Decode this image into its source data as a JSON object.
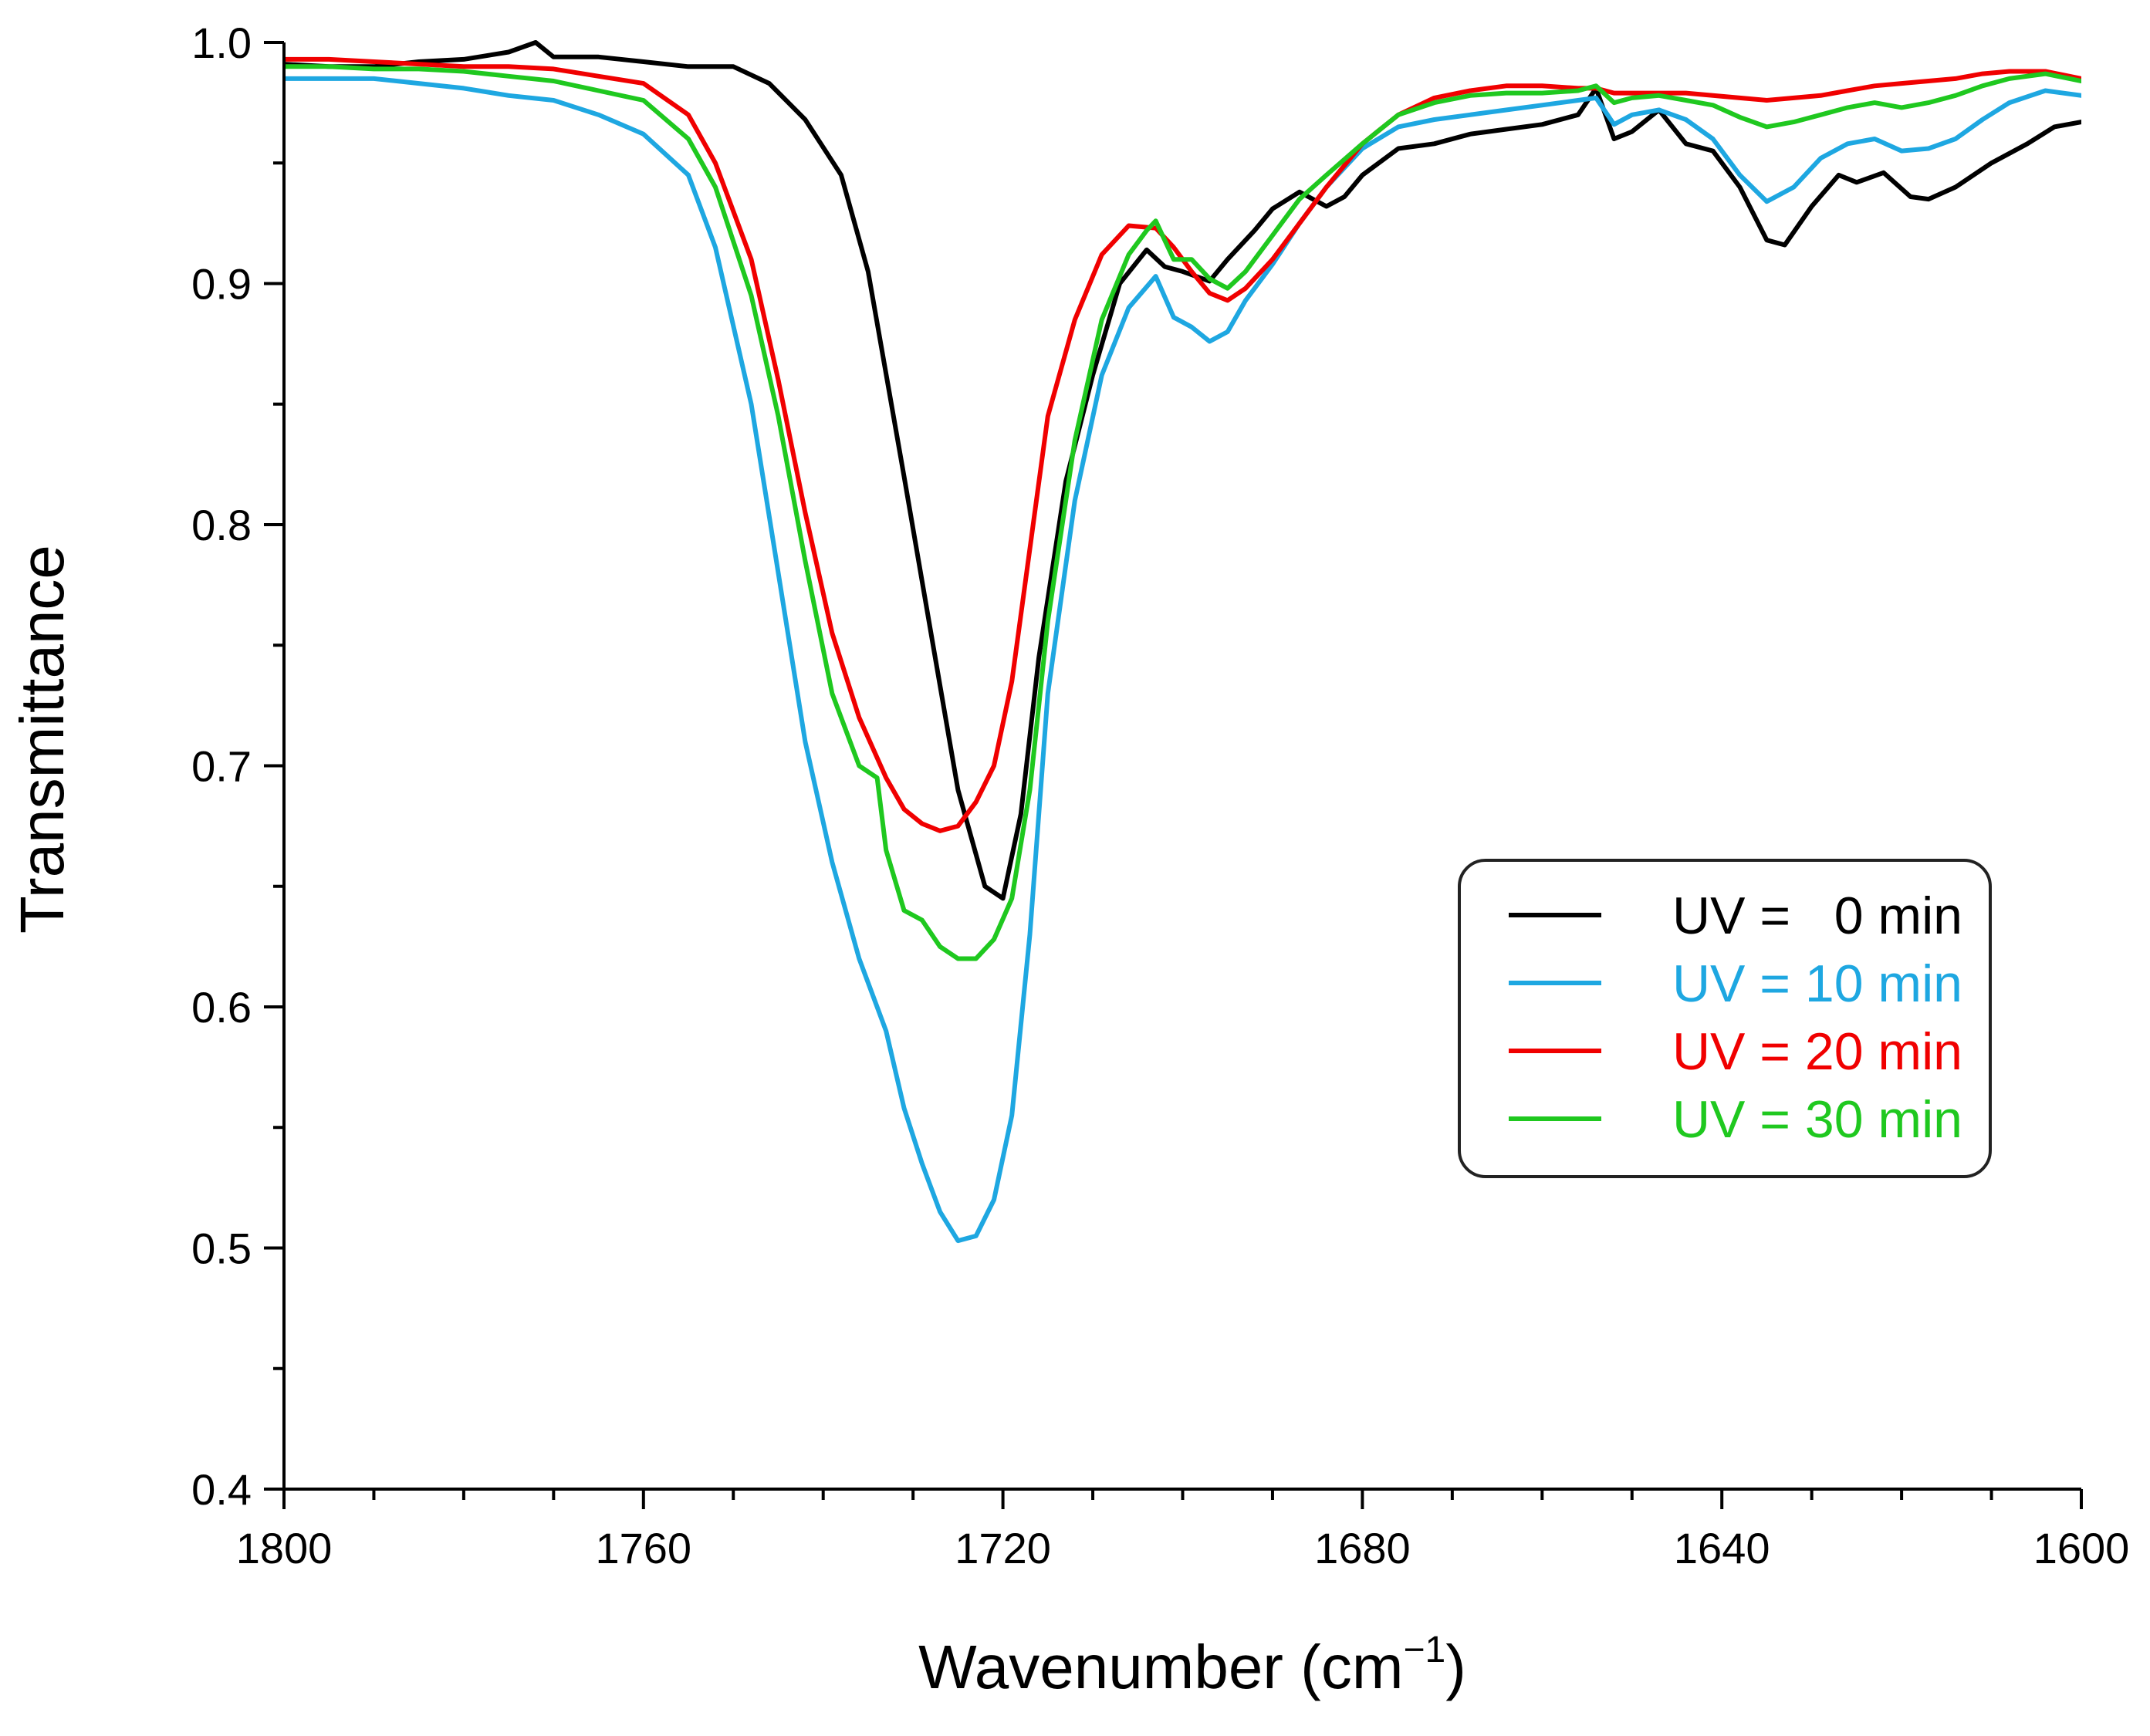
{
  "chart_data": {
    "type": "line",
    "xlabel": "Wavenumber (cm",
    "xlabel_sup": "−1",
    "xlabel_close": ")",
    "ylabel": "Transmittance",
    "xlim": [
      1800,
      1600
    ],
    "ylim": [
      0.4,
      1.0
    ],
    "x_ticks": [
      "1800",
      "1760",
      "1720",
      "1680",
      "1640",
      "1600"
    ],
    "y_ticks": [
      "0.4",
      "0.5",
      "0.6",
      "0.7",
      "0.8",
      "0.9",
      "1.0"
    ],
    "legend": {
      "placement": "right-center"
    },
    "series": [
      {
        "name": "UV =   0 min",
        "color": "#000000",
        "x": [
          1800,
          1795,
          1790,
          1785,
          1780,
          1775,
          1772,
          1770,
          1765,
          1760,
          1755,
          1750,
          1746,
          1742,
          1738,
          1735,
          1731,
          1728,
          1725,
          1722,
          1720,
          1718,
          1716,
          1713,
          1710,
          1707,
          1704,
          1702,
          1700,
          1697,
          1695,
          1692,
          1690,
          1687,
          1684,
          1682,
          1680,
          1676,
          1672,
          1668,
          1664,
          1660,
          1656,
          1654,
          1652,
          1650,
          1647,
          1644,
          1641,
          1638,
          1635,
          1633,
          1630,
          1627,
          1625,
          1622,
          1619,
          1617,
          1614,
          1610,
          1606,
          1603,
          1600
        ],
        "y": [
          0.991,
          0.99,
          0.99,
          0.992,
          0.993,
          0.996,
          1.0,
          0.994,
          0.994,
          0.992,
          0.99,
          0.99,
          0.983,
          0.968,
          0.945,
          0.905,
          0.82,
          0.755,
          0.69,
          0.65,
          0.645,
          0.68,
          0.745,
          0.818,
          0.862,
          0.9,
          0.914,
          0.907,
          0.905,
          0.901,
          0.91,
          0.922,
          0.931,
          0.938,
          0.932,
          0.936,
          0.945,
          0.956,
          0.958,
          0.962,
          0.964,
          0.966,
          0.97,
          0.981,
          0.96,
          0.963,
          0.972,
          0.958,
          0.955,
          0.94,
          0.918,
          0.916,
          0.932,
          0.945,
          0.942,
          0.946,
          0.936,
          0.935,
          0.94,
          0.95,
          0.958,
          0.965,
          0.967
        ]
      },
      {
        "name": "UV = 10 min",
        "color": "#1EA7E1",
        "x": [
          1800,
          1795,
          1790,
          1785,
          1780,
          1775,
          1770,
          1765,
          1760,
          1755,
          1752,
          1748,
          1745,
          1742,
          1739,
          1736,
          1733,
          1731,
          1729,
          1727,
          1725,
          1723,
          1721,
          1719,
          1717,
          1715,
          1712,
          1709,
          1706,
          1703,
          1701,
          1699,
          1697,
          1695,
          1693,
          1690,
          1687,
          1684,
          1680,
          1676,
          1672,
          1668,
          1664,
          1660,
          1656,
          1654,
          1652,
          1650,
          1647,
          1644,
          1641,
          1638,
          1635,
          1632,
          1629,
          1626,
          1623,
          1620,
          1617,
          1614,
          1611,
          1608,
          1604,
          1600
        ],
        "y": [
          0.985,
          0.985,
          0.985,
          0.983,
          0.981,
          0.978,
          0.976,
          0.97,
          0.962,
          0.945,
          0.915,
          0.85,
          0.78,
          0.71,
          0.66,
          0.62,
          0.59,
          0.558,
          0.535,
          0.515,
          0.503,
          0.505,
          0.52,
          0.555,
          0.63,
          0.73,
          0.81,
          0.862,
          0.89,
          0.903,
          0.886,
          0.882,
          0.876,
          0.88,
          0.893,
          0.908,
          0.925,
          0.94,
          0.956,
          0.965,
          0.968,
          0.97,
          0.972,
          0.974,
          0.976,
          0.977,
          0.966,
          0.97,
          0.972,
          0.968,
          0.96,
          0.945,
          0.934,
          0.94,
          0.952,
          0.958,
          0.96,
          0.955,
          0.956,
          0.96,
          0.968,
          0.975,
          0.98,
          0.978
        ]
      },
      {
        "name": "UV = 20 min",
        "color": "#F00000",
        "x": [
          1800,
          1795,
          1790,
          1785,
          1780,
          1775,
          1770,
          1765,
          1760,
          1755,
          1752,
          1748,
          1745,
          1742,
          1739,
          1736,
          1733,
          1731,
          1729,
          1727,
          1725,
          1723,
          1721,
          1719,
          1717,
          1715,
          1712,
          1709,
          1706,
          1703,
          1701,
          1699,
          1697,
          1695,
          1693,
          1690,
          1687,
          1684,
          1680,
          1676,
          1672,
          1668,
          1664,
          1660,
          1656,
          1654,
          1652,
          1650,
          1647,
          1644,
          1641,
          1638,
          1635,
          1632,
          1629,
          1626,
          1623,
          1620,
          1617,
          1614,
          1611,
          1608,
          1604,
          1600
        ],
        "y": [
          0.993,
          0.993,
          0.992,
          0.991,
          0.99,
          0.99,
          0.989,
          0.986,
          0.983,
          0.97,
          0.95,
          0.91,
          0.86,
          0.805,
          0.755,
          0.72,
          0.695,
          0.682,
          0.676,
          0.673,
          0.675,
          0.685,
          0.7,
          0.735,
          0.79,
          0.845,
          0.885,
          0.912,
          0.924,
          0.923,
          0.915,
          0.905,
          0.896,
          0.893,
          0.898,
          0.91,
          0.925,
          0.94,
          0.958,
          0.97,
          0.977,
          0.98,
          0.982,
          0.982,
          0.981,
          0.981,
          0.979,
          0.979,
          0.979,
          0.979,
          0.978,
          0.977,
          0.976,
          0.977,
          0.978,
          0.98,
          0.982,
          0.983,
          0.984,
          0.985,
          0.987,
          0.988,
          0.988,
          0.985
        ]
      },
      {
        "name": "UV = 30 min",
        "color": "#1FC81F",
        "x": [
          1800,
          1795,
          1790,
          1785,
          1780,
          1775,
          1770,
          1765,
          1760,
          1755,
          1752,
          1748,
          1745,
          1742,
          1739,
          1736,
          1734,
          1733,
          1731,
          1729,
          1727,
          1725,
          1723,
          1721,
          1719,
          1717,
          1715,
          1712,
          1709,
          1706,
          1704,
          1703,
          1701,
          1699,
          1697,
          1695,
          1693,
          1690,
          1687,
          1684,
          1680,
          1676,
          1672,
          1668,
          1664,
          1660,
          1656,
          1654,
          1652,
          1650,
          1647,
          1644,
          1641,
          1638,
          1635,
          1632,
          1629,
          1626,
          1623,
          1620,
          1617,
          1614,
          1611,
          1608,
          1604,
          1600
        ],
        "y": [
          0.99,
          0.99,
          0.989,
          0.989,
          0.988,
          0.986,
          0.984,
          0.98,
          0.976,
          0.96,
          0.94,
          0.895,
          0.845,
          0.785,
          0.73,
          0.7,
          0.695,
          0.665,
          0.64,
          0.636,
          0.625,
          0.62,
          0.62,
          0.628,
          0.645,
          0.69,
          0.76,
          0.835,
          0.885,
          0.912,
          0.922,
          0.926,
          0.91,
          0.91,
          0.902,
          0.898,
          0.905,
          0.92,
          0.935,
          0.945,
          0.958,
          0.97,
          0.975,
          0.978,
          0.979,
          0.979,
          0.98,
          0.982,
          0.975,
          0.977,
          0.978,
          0.976,
          0.974,
          0.969,
          0.965,
          0.967,
          0.97,
          0.973,
          0.975,
          0.973,
          0.975,
          0.978,
          0.982,
          0.985,
          0.987,
          0.984
        ]
      }
    ]
  }
}
